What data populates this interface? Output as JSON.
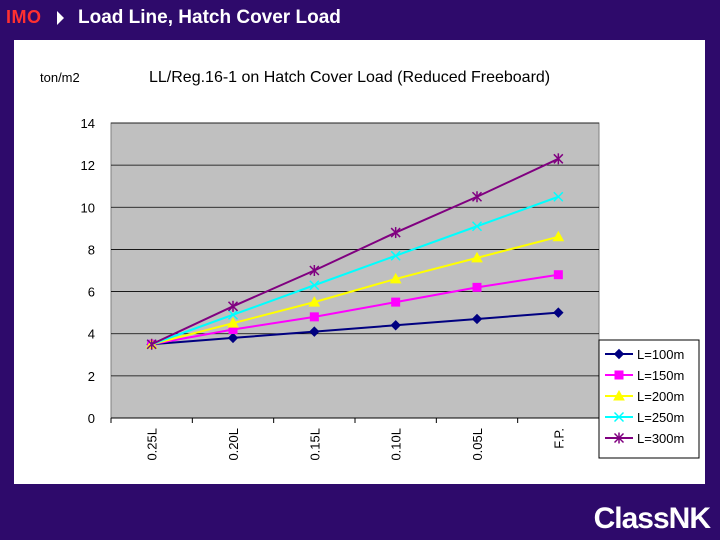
{
  "header": {
    "org": "IMO",
    "title": "Load Line, Hatch Cover Load"
  },
  "logo": {
    "text": "ClassNK"
  },
  "colors": {
    "background": "#2e0a6b",
    "plot_area": "#c0c0c0"
  },
  "chart_data": {
    "type": "line",
    "title": "LL/Reg.16-1 on Hatch Cover Load (Reduced Freeboard)",
    "ylabel": "ton/m2",
    "xlabel": "",
    "categories": [
      "0.25L",
      "0.20L",
      "0.15L",
      "0.10L",
      "0.05L",
      "F.P."
    ],
    "ylim": [
      0,
      14
    ],
    "yticks": [
      0,
      2,
      4,
      6,
      8,
      10,
      12,
      14
    ],
    "grid": true,
    "legend_position": "right",
    "series": [
      {
        "name": "L=100m",
        "color": "#000080",
        "marker": "diamond",
        "values": [
          3.5,
          3.8,
          4.1,
          4.4,
          4.7,
          5.0
        ]
      },
      {
        "name": "L=150m",
        "color": "#ff00ff",
        "marker": "square",
        "values": [
          3.5,
          4.2,
          4.8,
          5.5,
          6.2,
          6.8
        ]
      },
      {
        "name": "L=200m",
        "color": "#ffff00",
        "marker": "triangle",
        "values": [
          3.5,
          4.5,
          5.5,
          6.6,
          7.6,
          8.6
        ]
      },
      {
        "name": "L=250m",
        "color": "#00ffff",
        "marker": "x",
        "values": [
          3.5,
          4.9,
          6.3,
          7.7,
          9.1,
          10.5
        ]
      },
      {
        "name": "L=300m",
        "color": "#800080",
        "marker": "star",
        "values": [
          3.5,
          5.3,
          7.0,
          8.8,
          10.5,
          12.3
        ]
      }
    ]
  }
}
